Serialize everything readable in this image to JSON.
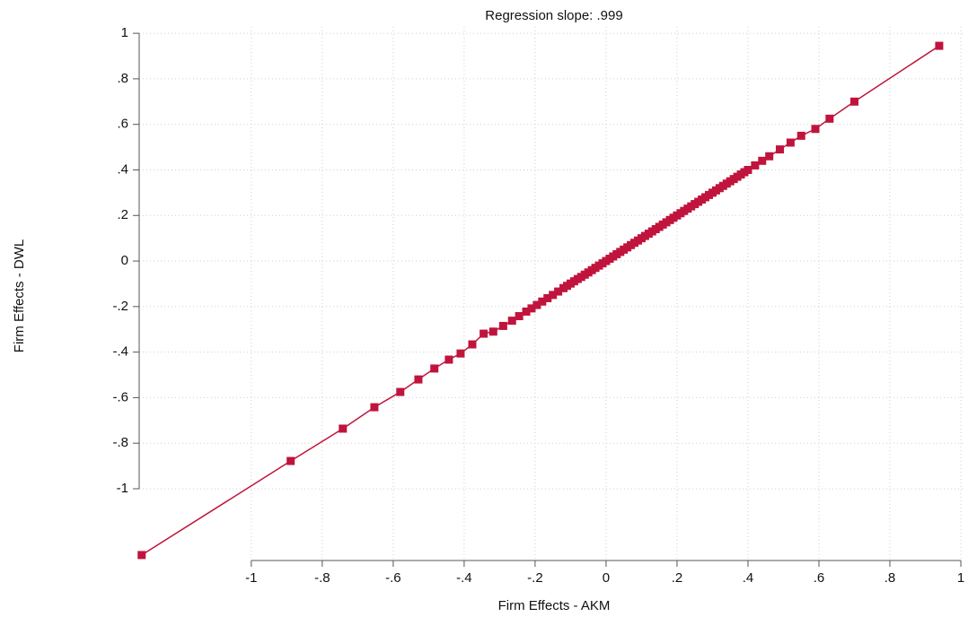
{
  "chart_data": {
    "type": "scatter",
    "title": "Regression slope: .999",
    "x_label": "Firm Effects - AKM",
    "y_label": "Firm Effects - DWL",
    "series": [
      {
        "color": "#c0143c",
        "connected": true,
        "x": [
          -1.309,
          -0.889,
          -0.742,
          -0.653,
          -0.58,
          -0.529,
          -0.484,
          -0.443,
          -0.41,
          -0.377,
          -0.345,
          -0.318,
          -0.29,
          -0.265,
          -0.245,
          -0.225,
          -0.21,
          -0.195,
          -0.18,
          -0.165,
          -0.15,
          -0.135,
          -0.12,
          -0.11,
          -0.1,
          -0.09,
          -0.08,
          -0.07,
          -0.06,
          -0.05,
          -0.04,
          -0.03,
          -0.02,
          -0.01,
          0,
          0.01,
          0.02,
          0.03,
          0.04,
          0.05,
          0.06,
          0.07,
          0.08,
          0.09,
          0.1,
          0.11,
          0.12,
          0.13,
          0.14,
          0.15,
          0.16,
          0.17,
          0.18,
          0.19,
          0.2,
          0.21,
          0.22,
          0.23,
          0.24,
          0.25,
          0.26,
          0.27,
          0.28,
          0.29,
          0.3,
          0.31,
          0.32,
          0.33,
          0.34,
          0.35,
          0.36,
          0.37,
          0.38,
          0.39,
          0.4,
          0.42,
          0.44,
          0.46,
          0.49,
          0.52,
          0.55,
          0.59,
          0.63,
          0.7,
          0.939
        ],
        "y": [
          -1.291,
          -0.878,
          -0.736,
          -0.642,
          -0.575,
          -0.52,
          -0.472,
          -0.433,
          -0.406,
          -0.366,
          -0.319,
          -0.31,
          -0.285,
          -0.262,
          -0.242,
          -0.222,
          -0.208,
          -0.193,
          -0.178,
          -0.163,
          -0.149,
          -0.134,
          -0.119,
          -0.109,
          -0.099,
          -0.089,
          -0.079,
          -0.07,
          -0.06,
          -0.05,
          -0.04,
          -0.03,
          -0.02,
          -0.01,
          0,
          0.01,
          0.02,
          0.03,
          0.04,
          0.05,
          0.06,
          0.07,
          0.08,
          0.09,
          0.1,
          0.11,
          0.12,
          0.13,
          0.14,
          0.15,
          0.16,
          0.17,
          0.18,
          0.19,
          0.2,
          0.21,
          0.22,
          0.23,
          0.24,
          0.25,
          0.26,
          0.27,
          0.28,
          0.29,
          0.3,
          0.31,
          0.32,
          0.33,
          0.34,
          0.35,
          0.36,
          0.37,
          0.38,
          0.39,
          0.4,
          0.42,
          0.44,
          0.46,
          0.49,
          0.52,
          0.55,
          0.58,
          0.625,
          0.7,
          0.945
        ]
      }
    ],
    "xlim": [
      -1.316,
      1.005
    ],
    "ylim": [
      -1.315,
      1.028
    ],
    "xticks": [
      -1,
      {
        "value": -0.8,
        "label": "-.8"
      },
      {
        "value": -0.6,
        "label": "-.6"
      },
      {
        "value": -0.4,
        "label": "-.4"
      },
      {
        "value": -0.2,
        "label": "-.2"
      },
      0,
      {
        "value": 0.2,
        "label": ".2"
      },
      {
        "value": 0.4,
        "label": ".4"
      },
      {
        "value": 0.6,
        "label": ".6"
      },
      {
        "value": 0.8,
        "label": ".8"
      },
      1
    ],
    "yticks": [
      -1,
      {
        "value": -0.8,
        "label": "-.8"
      },
      {
        "value": -0.6,
        "label": "-.6"
      },
      {
        "value": -0.4,
        "label": "-.4"
      },
      {
        "value": -0.2,
        "label": "-.2"
      },
      0,
      {
        "value": 0.2,
        "label": ".2"
      },
      {
        "value": 0.4,
        "label": ".4"
      },
      {
        "value": 0.6,
        "label": ".6"
      },
      {
        "value": 0.8,
        "label": ".8"
      },
      1
    ],
    "grid": true
  }
}
